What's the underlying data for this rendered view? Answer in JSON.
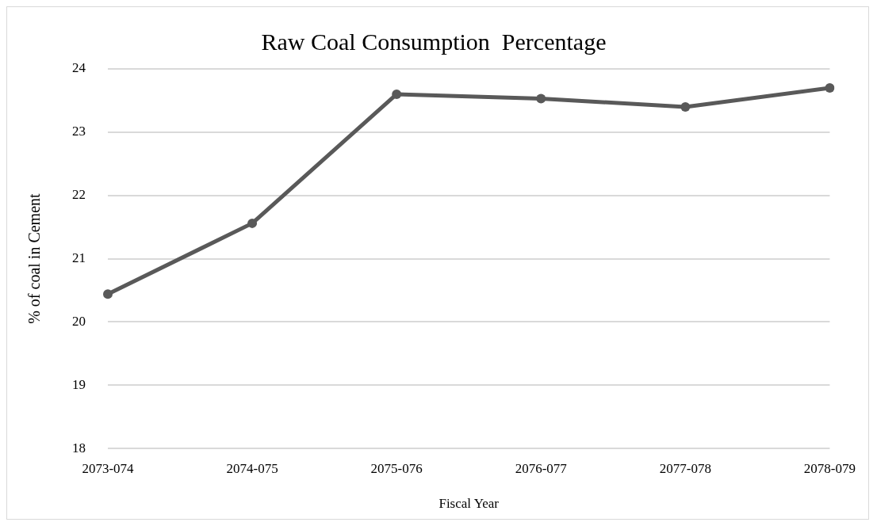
{
  "chart_data": {
    "type": "line",
    "title": "Raw Coal Consumption  Percentage",
    "xlabel": "Fiscal Year",
    "ylabel": "% of coal in Cement",
    "categories": [
      "2073-074",
      "2074-075",
      "2075-076",
      "2076-077",
      "2077-078",
      "2078-079"
    ],
    "series": [
      {
        "color": "#595959",
        "values": [
          20.44,
          21.56,
          23.6,
          23.53,
          23.4,
          23.7
        ]
      }
    ],
    "ylim": [
      18,
      24
    ],
    "yticks": [
      18,
      19,
      20,
      21,
      22,
      23,
      24
    ],
    "grid": "y",
    "legend": false,
    "marker": "circle",
    "line_style": "solid"
  }
}
